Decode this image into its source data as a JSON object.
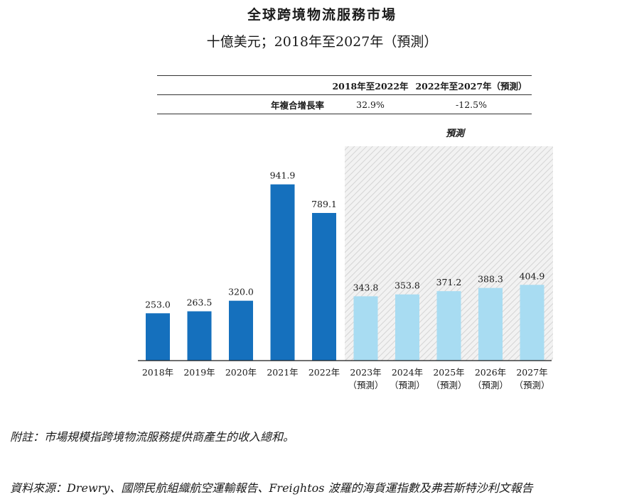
{
  "title": "全球跨境物流服務市場",
  "subtitle": "十億美元；2018年至2027年（預測）",
  "cagr_table": {
    "header": [
      "",
      "2018年至2022年",
      "2022年至2027年（預測）"
    ],
    "row": {
      "label": "年複合增長率",
      "values": [
        "32.9%",
        "-12.5%"
      ]
    }
  },
  "forecast_label": "預測",
  "chart_data": {
    "type": "bar",
    "categories": [
      "2018年",
      "2019年",
      "2020年",
      "2021年",
      "2022年",
      "2023年",
      "2024年",
      "2025年",
      "2026年",
      "2027年"
    ],
    "category_sublabels": [
      "",
      "",
      "",
      "",
      "",
      "（預測）",
      "（預測）",
      "（預測）",
      "（預測）",
      "（預測）"
    ],
    "values": [
      253.0,
      263.5,
      320.0,
      941.9,
      789.1,
      343.8,
      353.8,
      371.2,
      388.3,
      404.9
    ],
    "value_labels": [
      "253.0",
      "263.5",
      "320.0",
      "941.9",
      "789.1",
      "343.8",
      "353.8",
      "371.2",
      "388.3",
      "404.9"
    ],
    "forecast_start_index": 5,
    "colors": {
      "historical": "#1570bd",
      "forecast": "#a8dcf2",
      "forecast_region": "#e6e6e6"
    },
    "ylim": [
      0,
      1000
    ],
    "grid": false
  },
  "note": "附註：市場規模指跨境物流服務提供商產生的收入總和。",
  "source": "資料來源：Drewry、國際民航組織航空運輸報告、Freightos 波羅的海貨運指數及弗若斯特沙利文報告"
}
